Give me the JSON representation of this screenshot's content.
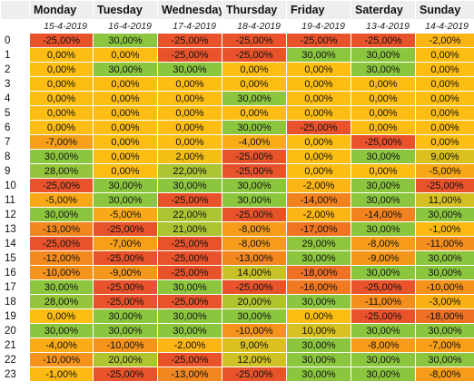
{
  "columns": [
    "Monday",
    "Tuesday",
    "Wednesday",
    "Thursday",
    "Friday",
    "Saterday",
    "Sunday"
  ],
  "dates": [
    "15-4-2019",
    "16-4-2019",
    "17-4-2019",
    "18-4-2019",
    "19-4-2019",
    "13-4-2019",
    "14-4-2019"
  ],
  "rows": [
    {
      "hour": "0",
      "values": [
        "-25,00%",
        "30,00%",
        "-25,00%",
        "-25,00%",
        "-25,00%",
        "-25,00%",
        "-2,00%"
      ]
    },
    {
      "hour": "1",
      "values": [
        "0,00%",
        "0,00%",
        "-25,00%",
        "-25,00%",
        "30,00%",
        "30,00%",
        "0,00%"
      ]
    },
    {
      "hour": "2",
      "values": [
        "0,00%",
        "30,00%",
        "30,00%",
        "0,00%",
        "0,00%",
        "30,00%",
        "0,00%"
      ]
    },
    {
      "hour": "3",
      "values": [
        "0,00%",
        "0,00%",
        "0,00%",
        "0,00%",
        "0,00%",
        "0,00%",
        "0,00%"
      ]
    },
    {
      "hour": "4",
      "values": [
        "0,00%",
        "0,00%",
        "0,00%",
        "30,00%",
        "0,00%",
        "0,00%",
        "0,00%"
      ]
    },
    {
      "hour": "5",
      "values": [
        "0,00%",
        "0,00%",
        "0,00%",
        "0,00%",
        "0,00%",
        "0,00%",
        "0,00%"
      ]
    },
    {
      "hour": "6",
      "values": [
        "0,00%",
        "0,00%",
        "0,00%",
        "30,00%",
        "-25,00%",
        "0,00%",
        "0,00%"
      ]
    },
    {
      "hour": "7",
      "values": [
        "-7,00%",
        "0,00%",
        "0,00%",
        "-4,00%",
        "0,00%",
        "-25,00%",
        "0,00%"
      ]
    },
    {
      "hour": "8",
      "values": [
        "30,00%",
        "0,00%",
        "2,00%",
        "-25,00%",
        "0,00%",
        "30,00%",
        "9,00%"
      ]
    },
    {
      "hour": "9",
      "values": [
        "28,00%",
        "0,00%",
        "22,00%",
        "-25,00%",
        "0,00%",
        "0,00%",
        "-5,00%"
      ]
    },
    {
      "hour": "10",
      "values": [
        "-25,00%",
        "30,00%",
        "30,00%",
        "30,00%",
        "-2,00%",
        "30,00%",
        "-25,00%"
      ]
    },
    {
      "hour": "11",
      "values": [
        "-5,00%",
        "30,00%",
        "-25,00%",
        "30,00%",
        "-14,00%",
        "30,00%",
        "11,00%"
      ]
    },
    {
      "hour": "12",
      "values": [
        "30,00%",
        "-5,00%",
        "22,00%",
        "-25,00%",
        "-2,00%",
        "-14,00%",
        "30,00%"
      ]
    },
    {
      "hour": "13",
      "values": [
        "-13,00%",
        "-25,00%",
        "21,00%",
        "-8,00%",
        "-17,00%",
        "30,00%",
        "-1,00%"
      ]
    },
    {
      "hour": "14",
      "values": [
        "-25,00%",
        "-7,00%",
        "-25,00%",
        "-8,00%",
        "29,00%",
        "-8,00%",
        "-11,00%"
      ]
    },
    {
      "hour": "15",
      "values": [
        "-12,00%",
        "-25,00%",
        "-25,00%",
        "-13,00%",
        "30,00%",
        "-9,00%",
        "30,00%"
      ]
    },
    {
      "hour": "16",
      "values": [
        "-10,00%",
        "-9,00%",
        "-25,00%",
        "14,00%",
        "-18,00%",
        "30,00%",
        "30,00%"
      ]
    },
    {
      "hour": "17",
      "values": [
        "30,00%",
        "-25,00%",
        "30,00%",
        "-25,00%",
        "-16,00%",
        "-25,00%",
        "-10,00%"
      ]
    },
    {
      "hour": "18",
      "values": [
        "28,00%",
        "-25,00%",
        "-25,00%",
        "20,00%",
        "30,00%",
        "-11,00%",
        "-3,00%"
      ]
    },
    {
      "hour": "19",
      "values": [
        "0,00%",
        "30,00%",
        "30,00%",
        "30,00%",
        "0,00%",
        "-25,00%",
        "-18,00%"
      ]
    },
    {
      "hour": "20",
      "values": [
        "30,00%",
        "30,00%",
        "30,00%",
        "-10,00%",
        "10,00%",
        "30,00%",
        "30,00%"
      ]
    },
    {
      "hour": "21",
      "values": [
        "-4,00%",
        "-10,00%",
        "-2,00%",
        "9,00%",
        "30,00%",
        "-8,00%",
        "-7,00%"
      ]
    },
    {
      "hour": "22",
      "values": [
        "-10,00%",
        "20,00%",
        "-25,00%",
        "12,00%",
        "30,00%",
        "30,00%",
        "30,00%"
      ]
    },
    {
      "hour": "23",
      "values": [
        "-1,00%",
        "-25,00%",
        "-13,00%",
        "-25,00%",
        "30,00%",
        "30,00%",
        "-8,00%"
      ]
    }
  ],
  "colors": {
    "neg_max": "#e8532b",
    "neutral": "#fdbd12",
    "pos_max": "#8cc63f",
    "header_bg": "#eeeeee"
  }
}
